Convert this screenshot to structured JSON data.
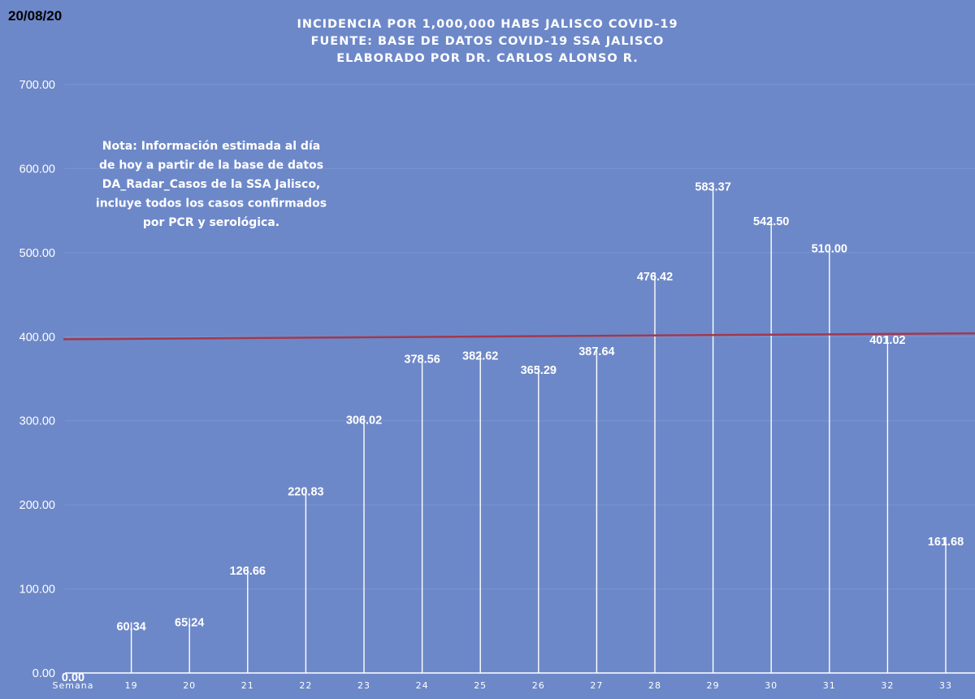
{
  "header": {
    "date": "20/08/20"
  },
  "chart_data": {
    "type": "bar",
    "title": [
      "INCIDENCIA POR 1,000,000 HABS JALISCO COVID-19",
      "FUENTE: BASE DE DATOS COVID-19 SSA JALISCO",
      "ELABORADO POR DR. CARLOS ALONSO R."
    ],
    "xlabel": "Semana",
    "ylabel": "",
    "ylim": [
      0,
      700
    ],
    "yticks": [
      "0.00",
      "100.00",
      "200.00",
      "300.00",
      "400.00",
      "500.00",
      "600.00",
      "700.00"
    ],
    "categories": [
      "",
      "19",
      "20",
      "21",
      "22",
      "23",
      "24",
      "25",
      "26",
      "27",
      "28",
      "29",
      "30",
      "31",
      "32",
      "33"
    ],
    "values": [
      0.0,
      60.34,
      65.24,
      126.66,
      220.83,
      306.02,
      378.56,
      382.62,
      365.29,
      387.64,
      476.42,
      583.37,
      542.5,
      510.0,
      401.02,
      161.68
    ],
    "data_labels": [
      "0.00",
      "60.34",
      "65.24",
      "126.66",
      "220.83",
      "306.02",
      "378.56",
      "382.62",
      "365.29",
      "387.64",
      "476.42",
      "583.37",
      "542.50",
      "510.00",
      "401.02",
      "161.68"
    ],
    "reference_line": {
      "type": "trend",
      "from_value": 397,
      "to_value": 404,
      "color": "#a0394f"
    },
    "bar_color": "#ffffff",
    "background_color": "#6d88c8",
    "grid": true,
    "legend": "none",
    "note": [
      "Nota: Información estimada al día",
      "de hoy a partir de la base de datos",
      "DA_Radar_Casos de la SSA Jalisco,",
      "incluye todos los casos confirmados",
      "por PCR y serológica."
    ]
  }
}
